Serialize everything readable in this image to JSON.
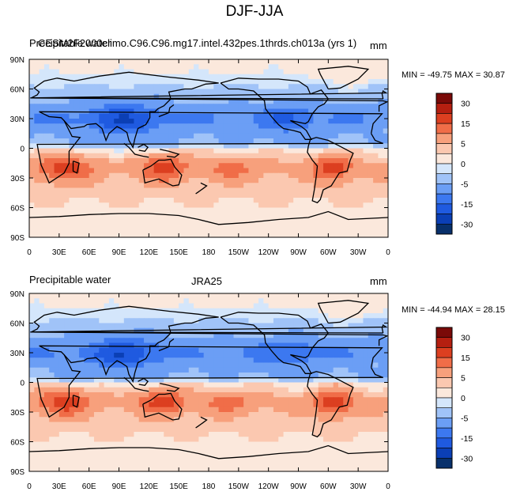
{
  "figure": {
    "title": "DJF-JJA"
  },
  "chart_data": [
    {
      "type": "heatmap",
      "left_title": "Precipitable water",
      "center_title": "CESM2F2000climo.C96.C96.mg17.intel.432pes.1thrds.ch013a (yrs 1)",
      "units": "mm",
      "min": -49.75,
      "max": 30.87,
      "stats_label": "MIN = -49.75 MAX =  30.87",
      "x_ticks": [
        "0",
        "30E",
        "60E",
        "90E",
        "120E",
        "150E",
        "180",
        "150W",
        "120W",
        "90W",
        "60W",
        "30W",
        "0"
      ],
      "y_ticks": [
        "90N",
        "60N",
        "30N",
        "0",
        "30S",
        "60S",
        "90S"
      ],
      "xlim": [
        0,
        360
      ],
      "ylim": [
        -90,
        90
      ],
      "colorbar_levels": [
        -30,
        -25,
        -20,
        -15,
        -10,
        -5,
        -2,
        2,
        5,
        10,
        15,
        20,
        25,
        30
      ],
      "colorbar_labels": [
        "30",
        "15",
        "5",
        "0",
        "-5",
        "-15",
        "-30"
      ]
    },
    {
      "type": "heatmap",
      "left_title": "Precipitable water",
      "center_title": "JRA25",
      "units": "mm",
      "min": -44.94,
      "max": 28.15,
      "stats_label": "MIN = -44.94 MAX =  28.15",
      "x_ticks": [
        "0",
        "30E",
        "60E",
        "90E",
        "120E",
        "150E",
        "180",
        "150W",
        "120W",
        "90W",
        "60W",
        "30W",
        "0"
      ],
      "y_ticks": [
        "90N",
        "60N",
        "30N",
        "0",
        "30S",
        "60S",
        "90S"
      ],
      "xlim": [
        0,
        360
      ],
      "ylim": [
        -90,
        90
      ],
      "colorbar_levels": [
        -30,
        -25,
        -20,
        -15,
        -10,
        -5,
        -2,
        2,
        5,
        10,
        15,
        20,
        25,
        30
      ],
      "colorbar_labels": [
        "30",
        "15",
        "5",
        "0",
        "-5",
        "-15",
        "-30"
      ]
    }
  ],
  "colors": {
    "palette": [
      "#08306b",
      "#0b3fb5",
      "#1f5ae0",
      "#3c78f0",
      "#6b9ef5",
      "#a0c3f8",
      "#d4e6fb",
      "#fbe8dc",
      "#fbc8b0",
      "#f7a07c",
      "#f06d48",
      "#dc3f20",
      "#b51f10",
      "#7a0a08"
    ]
  }
}
